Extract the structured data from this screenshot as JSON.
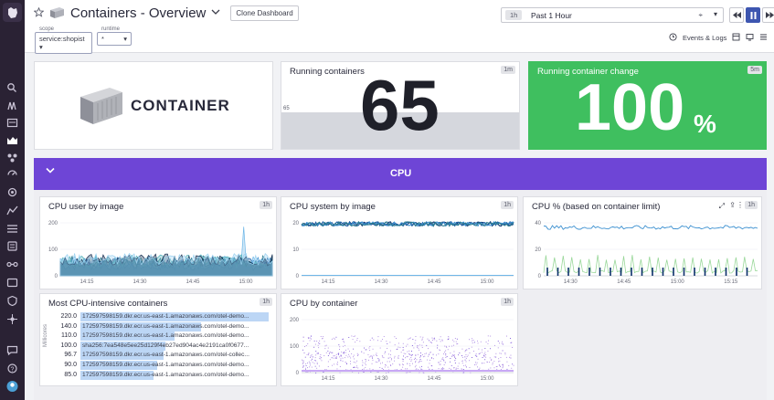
{
  "header": {
    "title": "Containers - Overview",
    "clone_label": "Clone Dashboard",
    "scope_label": "scope",
    "scope_value": "service:shopist",
    "runtime_label": "runtime",
    "runtime_value": "*",
    "time_short": "1h",
    "time_range": "Past 1 Hour",
    "events_label": "Events & Logs"
  },
  "widgets": {
    "logo_text": "CONTAINER",
    "running": {
      "title": "Running containers",
      "tag": "1m",
      "value": "65",
      "threshold_label": "65"
    },
    "change": {
      "title": "Running container change",
      "tag": "5m",
      "value": "100",
      "unit": "%"
    },
    "group_title": "CPU",
    "cpu_user": {
      "title": "CPU user by image",
      "tag": "1h"
    },
    "cpu_system": {
      "title": "CPU system by image",
      "tag": "1h"
    },
    "cpu_pct": {
      "title": "CPU % (based on container limit)",
      "tag": "1h"
    },
    "toplist": {
      "title": "Most CPU-intensive containers",
      "tag": "1h",
      "axis_label": "Millicores",
      "rows": [
        {
          "value": "220.0",
          "name": "172597598159.dkr.ecr.us-east-1.amazonaws.com/otel-demo...",
          "frac": 1.0
        },
        {
          "value": "140.0",
          "name": "172597598159.dkr.ecr.us-east-1.amazonaws.com/otel-demo...",
          "frac": 0.64
        },
        {
          "value": "110.0",
          "name": "172597598159.dkr.ecr.us-east-1.amazonaws.com/otel-demo...",
          "frac": 0.5
        },
        {
          "value": "100.0",
          "name": "sha256:7ea548e5ee25d129f4eb27ed904ac4e2191ca0f0677...",
          "frac": 0.45
        },
        {
          "value": "96.7",
          "name": "172597598159.dkr.ecr.us-east-1.amazonaws.com/otel-collec...",
          "frac": 0.44
        },
        {
          "value": "90.0",
          "name": "172597598159.dkr.ecr.us-east-1.amazonaws.com/otel-demo...",
          "frac": 0.41
        },
        {
          "value": "85.0",
          "name": "172597598159.dkr.ecr.us-east-1.amazonaws.com/otel-demo...",
          "frac": 0.39
        }
      ]
    },
    "by_container": {
      "title": "CPU by container",
      "tag": "1h"
    }
  },
  "chart_data": [
    {
      "type": "area",
      "title": "CPU user by image",
      "x": [
        "14:15",
        "14:30",
        "14:45",
        "15:00"
      ],
      "ylim": [
        0,
        200
      ],
      "yticks": [
        0,
        100,
        200
      ]
    },
    {
      "type": "line",
      "title": "CPU system by image",
      "x": [
        "14:15",
        "14:30",
        "14:45",
        "15:00"
      ],
      "ylim": [
        0,
        20
      ],
      "yticks": [
        0,
        10,
        20
      ]
    },
    {
      "type": "line",
      "title": "CPU % (based on container limit)",
      "x": [
        "14:30",
        "14:45",
        "15:00",
        "15:15"
      ],
      "ylim": [
        0,
        40
      ],
      "yticks": [
        0,
        20,
        40
      ]
    },
    {
      "type": "bar",
      "title": "Most CPU-intensive containers",
      "categories": [
        "172597598159.dkr.ecr.us-east-1.amazonaws.com/otel-demo...",
        "172597598159.dkr.ecr.us-east-1.amazonaws.com/otel-demo...",
        "172597598159.dkr.ecr.us-east-1.amazonaws.com/otel-demo...",
        "sha256:7ea548e5ee25d129f4eb27ed904ac4e2191ca0f0677...",
        "172597598159.dkr.ecr.us-east-1.amazonaws.com/otel-collec...",
        "172597598159.dkr.ecr.us-east-1.amazonaws.com/otel-demo...",
        "172597598159.dkr.ecr.us-east-1.amazonaws.com/otel-demo..."
      ],
      "values": [
        220.0,
        140.0,
        110.0,
        100.0,
        96.7,
        90.0,
        85.0
      ],
      "ylabel": "Millicores"
    },
    {
      "type": "scatter",
      "title": "CPU by container",
      "x": [
        "14:15",
        "14:30",
        "14:45",
        "15:00"
      ],
      "ylim": [
        0,
        200
      ],
      "yticks": [
        0,
        100,
        200
      ]
    }
  ],
  "colors": {
    "group": "#6e45d6",
    "change_bg": "#3fbf5f",
    "accent": "#3d56b0"
  }
}
